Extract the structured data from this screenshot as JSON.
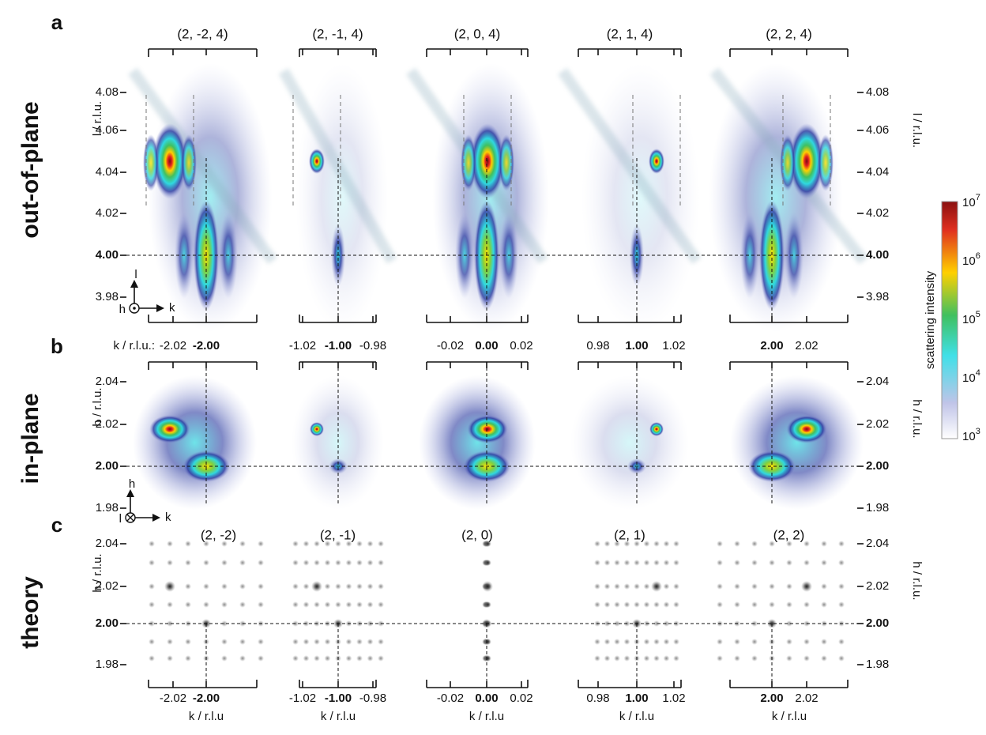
{
  "panel_labels": [
    "a",
    "b",
    "c"
  ],
  "row_labels": [
    "out-of-plane",
    "in-plane",
    "theory"
  ],
  "panel_a": {
    "titles": [
      "(2, -2, 4)",
      "(2, -1, 4)",
      "(2, 0, 4)",
      "(2, 1, 4)",
      "(2, 2, 4)"
    ],
    "y_label": "l / r.l.u.",
    "yticks": [
      "4.08",
      "4.06",
      "4.04",
      "4.02",
      "4.00",
      "3.98"
    ],
    "axes_glyph": {
      "up": "l",
      "left": "h",
      "right": "k"
    }
  },
  "k_prefix": "k / r.l.u.:",
  "k_ticks": [
    [
      "-2.02",
      "-2.00"
    ],
    [
      "-1.02",
      "-1.00",
      "-0.98"
    ],
    [
      "-0.02",
      "0.00",
      "0.02"
    ],
    [
      "0.98",
      "1.00",
      "1.02"
    ],
    [
      "2.00",
      "2.02"
    ]
  ],
  "panel_b": {
    "y_label": "h / r.l.u.",
    "yticks": [
      "2.04",
      "2.02",
      "2.00",
      "1.98"
    ],
    "axes_glyph": {
      "up": "h",
      "left": "l",
      "right": "k"
    }
  },
  "panel_c": {
    "titles": [
      "(2, -2)",
      "(2, -1)",
      "(2, 0)",
      "(2, 1)",
      "(2, 2)"
    ],
    "y_label": "h / r.l.u.",
    "yticks": [
      "2.04",
      "2.02",
      "2.00",
      "1.98"
    ],
    "x_label": "k / r.l.u"
  },
  "colorbar": {
    "label": "scattering intensity",
    "ticks": [
      {
        "base": "10",
        "exp": "7"
      },
      {
        "base": "10",
        "exp": "6"
      },
      {
        "base": "10",
        "exp": "5"
      },
      {
        "base": "10",
        "exp": "4"
      },
      {
        "base": "10",
        "exp": "3"
      }
    ]
  }
}
